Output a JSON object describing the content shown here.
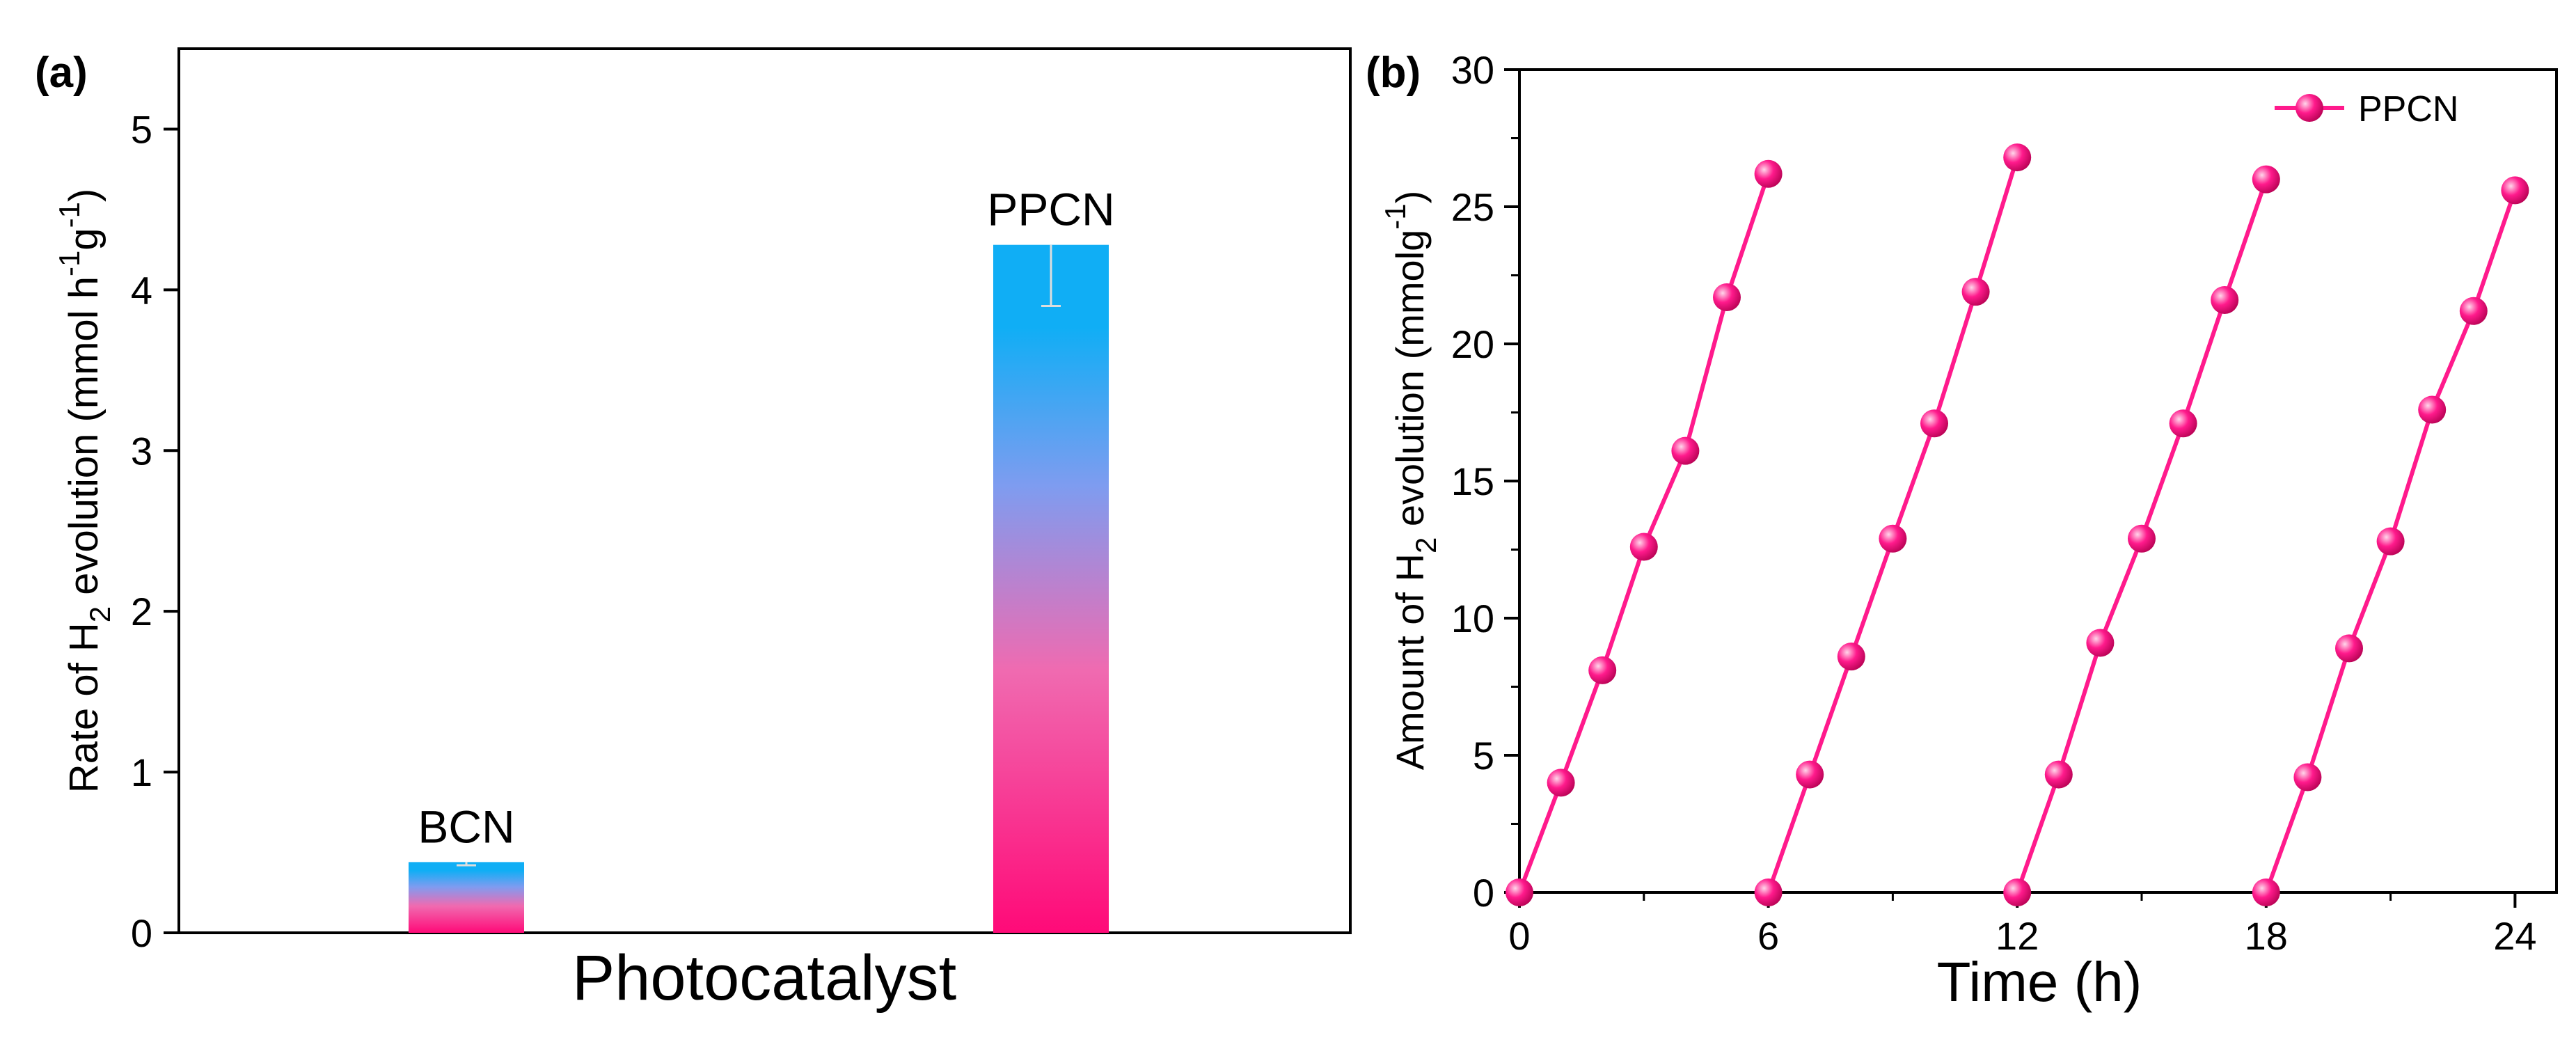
{
  "colors": {
    "bar_top": "#10aef5",
    "bar_mid": "#7e9cf0",
    "bar_lower": "#f06ab0",
    "bar_bottom": "#ff0a78",
    "series": "#ff1a8c",
    "errorbar": "#dddddd"
  },
  "chart_data": [
    {
      "panel_label": "(a)",
      "type": "bar",
      "title": "",
      "xlabel": "Photocatalyst",
      "ylabel": {
        "prefix": "Rate of H",
        "sub": "2",
        "mid": " evolution  (mmol h",
        "sup1": "-1",
        "mid2": "g",
        "sup2": "-1",
        "suffix": ")"
      },
      "ylim": [
        0,
        5.5
      ],
      "yticks": [
        "0",
        "1",
        "2",
        "3",
        "4",
        "5"
      ],
      "categories": [
        "BCN",
        "PPCN"
      ],
      "values": [
        0.44,
        4.28
      ],
      "errors": [
        0.02,
        0.38
      ]
    },
    {
      "panel_label": "(b)",
      "type": "line",
      "title": "",
      "xlabel": "Time (h)",
      "ylabel": {
        "prefix": "Amount of H",
        "sub": "2",
        "mid": " evolution (mmolg",
        "sup1": "-1",
        "suffix": ")"
      },
      "xlim": [
        0,
        25
      ],
      "ylim": [
        0,
        30
      ],
      "xticks": [
        "0",
        "6",
        "12",
        "18",
        "24"
      ],
      "yticks": [
        "0",
        "5",
        "10",
        "15",
        "20",
        "25",
        "30"
      ],
      "legend": {
        "label": "PPCN",
        "position": "top-right"
      },
      "series": [
        {
          "name": "PPCN",
          "cycles": [
            {
              "x": [
                0,
                1,
                2,
                3,
                4,
                5,
                6
              ],
              "y": [
                0,
                4.0,
                8.1,
                12.6,
                16.1,
                21.7,
                26.2
              ]
            },
            {
              "x": [
                6,
                7,
                8,
                9,
                10,
                11,
                12
              ],
              "y": [
                0,
                4.3,
                8.6,
                12.9,
                17.1,
                21.9,
                26.8
              ]
            },
            {
              "x": [
                12,
                13,
                14,
                15,
                16,
                17,
                18
              ],
              "y": [
                0,
                4.3,
                9.1,
                12.9,
                17.1,
                21.6,
                26.0
              ]
            },
            {
              "x": [
                18,
                19,
                20,
                21,
                22,
                23,
                24
              ],
              "y": [
                0,
                4.2,
                8.9,
                12.8,
                17.6,
                21.2,
                25.6
              ]
            }
          ]
        }
      ]
    }
  ]
}
